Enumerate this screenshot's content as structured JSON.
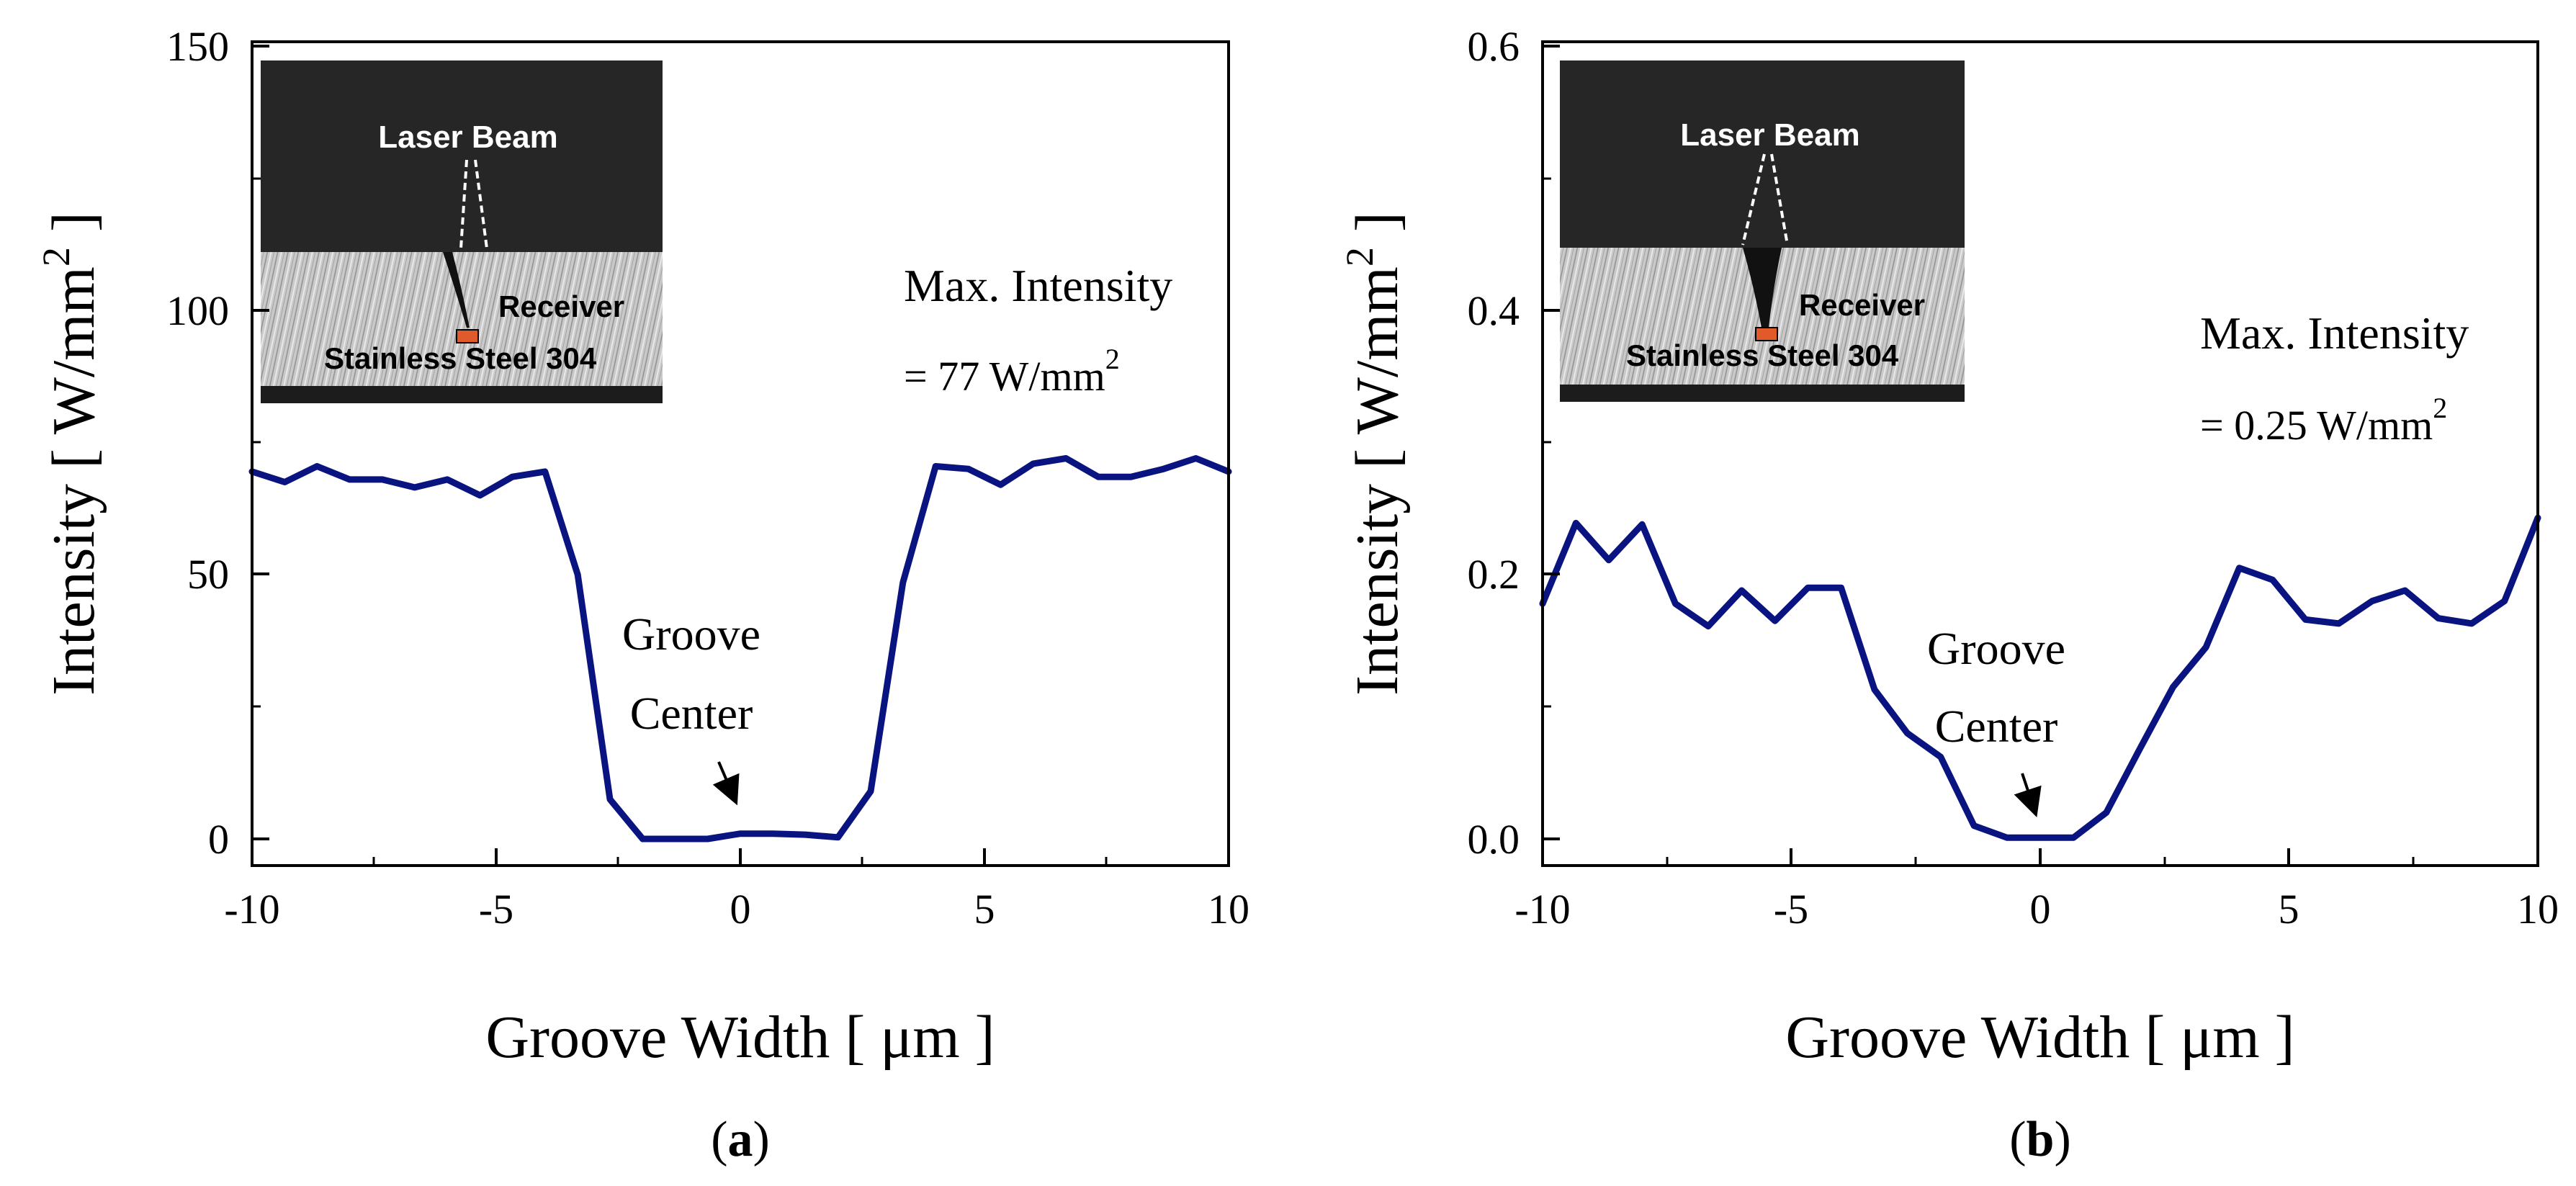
{
  "chart_data": [
    {
      "type": "line",
      "panel_label": "a",
      "xlabel": "Groove Width [ μm ]",
      "ylabel": "Intensity [ W/mm",
      "ylabel_sup": "2",
      "ylabel_close": " ]",
      "xlim": [
        -10,
        10
      ],
      "ylim": [
        -5,
        150
      ],
      "xticks": [
        -10,
        -5,
        0,
        5,
        10
      ],
      "xtick_labels": [
        "-10",
        "-5",
        "0",
        "5",
        "10"
      ],
      "yticks": [
        0,
        50,
        100,
        150
      ],
      "ytick_labels": [
        "0",
        "50",
        "100",
        "150"
      ],
      "line_color": "#0a1480",
      "series": [
        {
          "name": "Intensity",
          "x": [
            -10,
            -9.33,
            -8.67,
            -8,
            -7.33,
            -6.67,
            -6,
            -5.33,
            -4.67,
            -4,
            -3.33,
            -2.67,
            -2,
            -1.33,
            -0.67,
            0,
            0.67,
            1.33,
            2,
            2.67,
            3.33,
            4,
            4.67,
            5.33,
            6,
            6.67,
            7.33,
            8,
            8.67,
            9.33,
            10
          ],
          "y": [
            69.5,
            67.5,
            70.5,
            68,
            68,
            66.5,
            68,
            65,
            68.5,
            69.5,
            50,
            7.5,
            0,
            0,
            0,
            1,
            1,
            0.8,
            0.3,
            9,
            48.5,
            70.5,
            70,
            67,
            71,
            72,
            68.5,
            68.5,
            70,
            72,
            69.5
          ]
        }
      ],
      "annotation_text": [
        "Groove",
        "Center"
      ],
      "info_line1": "Max. Intensity",
      "info_line2": "= 77 W/mm",
      "info_sup": "2",
      "inset_labels": {
        "beam": "Laser Beam",
        "receiver": "Receiver",
        "material": "Stainless Steel 304"
      }
    },
    {
      "type": "line",
      "panel_label": "b",
      "xlabel": "Groove Width [ μm ]",
      "ylabel": "Intensity [ W/mm",
      "ylabel_sup": "2",
      "ylabel_close": " ]",
      "xlim": [
        -10,
        10
      ],
      "ylim": [
        -0.02,
        0.6
      ],
      "xticks": [
        -10,
        -5,
        0,
        5,
        10
      ],
      "xtick_labels": [
        "-10",
        "-5",
        "0",
        "5",
        "10"
      ],
      "yticks": [
        0,
        0.2,
        0.4,
        0.6
      ],
      "ytick_labels": [
        "0.0",
        "0.2",
        "0.4",
        "0.6"
      ],
      "line_color": "#0a1480",
      "series": [
        {
          "name": "Intensity",
          "x": [
            -10,
            -9.33,
            -8.67,
            -8,
            -7.33,
            -6.67,
            -6,
            -5.33,
            -4.67,
            -4,
            -3.33,
            -2.67,
            -2,
            -1.33,
            -0.67,
            0,
            0.67,
            1.33,
            2,
            2.67,
            3.33,
            4,
            4.67,
            5.33,
            6,
            6.67,
            7.33,
            8,
            8.67,
            9.33,
            10
          ],
          "y": [
            0.178,
            0.239,
            0.211,
            0.238,
            0.178,
            0.161,
            0.188,
            0.165,
            0.19,
            0.19,
            0.113,
            0.08,
            0.062,
            0.01,
            0.001,
            0.001,
            0.001,
            0.02,
            0.068,
            0.115,
            0.145,
            0.205,
            0.196,
            0.166,
            0.163,
            0.18,
            0.188,
            0.167,
            0.163,
            0.18,
            0.243
          ]
        }
      ],
      "annotation_text": [
        "Groove",
        "Center"
      ],
      "info_line1": "Max. Intensity",
      "info_line2": "= 0.25 W/mm",
      "info_sup": "2",
      "inset_labels": {
        "beam": "Laser Beam",
        "receiver": "Receiver",
        "material": "Stainless Steel 304"
      }
    }
  ]
}
